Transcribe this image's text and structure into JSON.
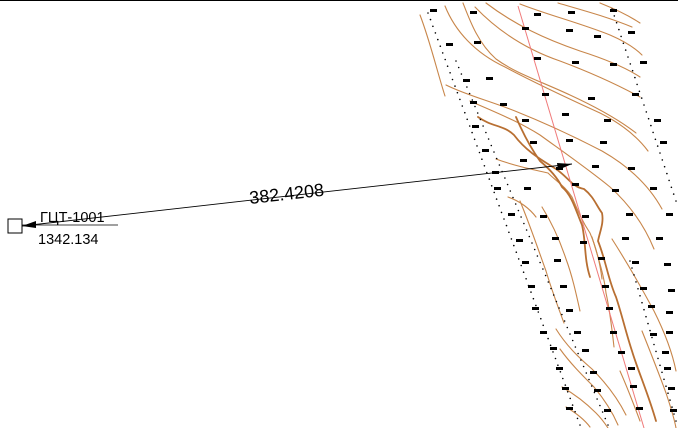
{
  "survey_point": {
    "name": "ГЦТ-1001",
    "elevation": "1342.134"
  },
  "dimension": {
    "distance": "382.4208"
  },
  "colors": {
    "contour": "#c8864a",
    "contour_index": "#b86f32",
    "axis_line": "#f07a7a",
    "ink": "#000000",
    "background": "#ffffff"
  }
}
